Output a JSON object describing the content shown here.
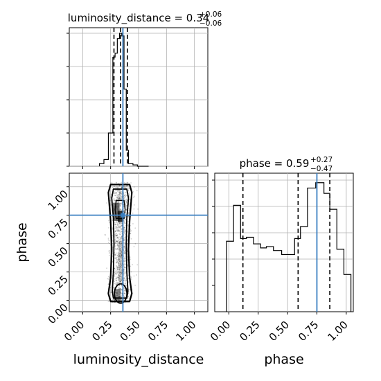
{
  "chart_data": {
    "type": "corner",
    "parameters": [
      "luminosity_distance",
      "phase"
    ],
    "truth_color": "#3a7fc1",
    "luminosity_distance": {
      "title_prefix": "luminosity_distance = 0.34",
      "title_sup": "+0.06",
      "title_sub": "−0.06",
      "xlabel": "luminosity_distance",
      "xlim": [
        -0.12,
        1.12
      ],
      "ticks": [
        "0.00",
        "0.25",
        "0.50",
        "0.75",
        "1.00"
      ],
      "tick_values": [
        0,
        0.25,
        0.5,
        0.75,
        1.0
      ],
      "quantiles": [
        0.28,
        0.34,
        0.4
      ],
      "truth": 0.36,
      "histogram": {
        "bin_edges": [
          0.15,
          0.19,
          0.23,
          0.27,
          0.29,
          0.31,
          0.33,
          0.35,
          0.37,
          0.39,
          0.41,
          0.45,
          0.49,
          0.55,
          0.59
        ],
        "heights": [
          0.02,
          0.05,
          0.25,
          0.82,
          0.85,
          0.96,
          1.0,
          0.98,
          0.58,
          0.12,
          0.02,
          0.01,
          0.0,
          0.0
        ]
      }
    },
    "phase": {
      "title_prefix": "phase = 0.59",
      "title_sup": "+0.27",
      "title_sub": "−0.47",
      "xlabel": "phase",
      "ylabel": "phase",
      "xlim": [
        -0.12,
        1.06
      ],
      "ylim": [
        -0.1,
        1.12
      ],
      "ticks": [
        "0.00",
        "0.25",
        "0.50",
        "0.75",
        "1.00"
      ],
      "tick_values": [
        0,
        0.25,
        0.5,
        0.75,
        1.0
      ],
      "quantiles": [
        0.12,
        0.59,
        0.86
      ],
      "truth": 0.75,
      "histogram": {
        "bin_edges": [
          -0.02,
          0.04,
          0.1,
          0.15,
          0.21,
          0.27,
          0.32,
          0.38,
          0.45,
          0.5,
          0.56,
          0.61,
          0.67,
          0.74,
          0.81,
          0.86,
          0.92,
          0.98,
          1.04
        ],
        "heights": [
          0.53,
          0.8,
          0.55,
          0.56,
          0.51,
          0.48,
          0.49,
          0.46,
          0.43,
          0.43,
          0.55,
          0.64,
          0.93,
          0.97,
          0.89,
          0.77,
          0.47,
          0.28
        ]
      }
    }
  }
}
